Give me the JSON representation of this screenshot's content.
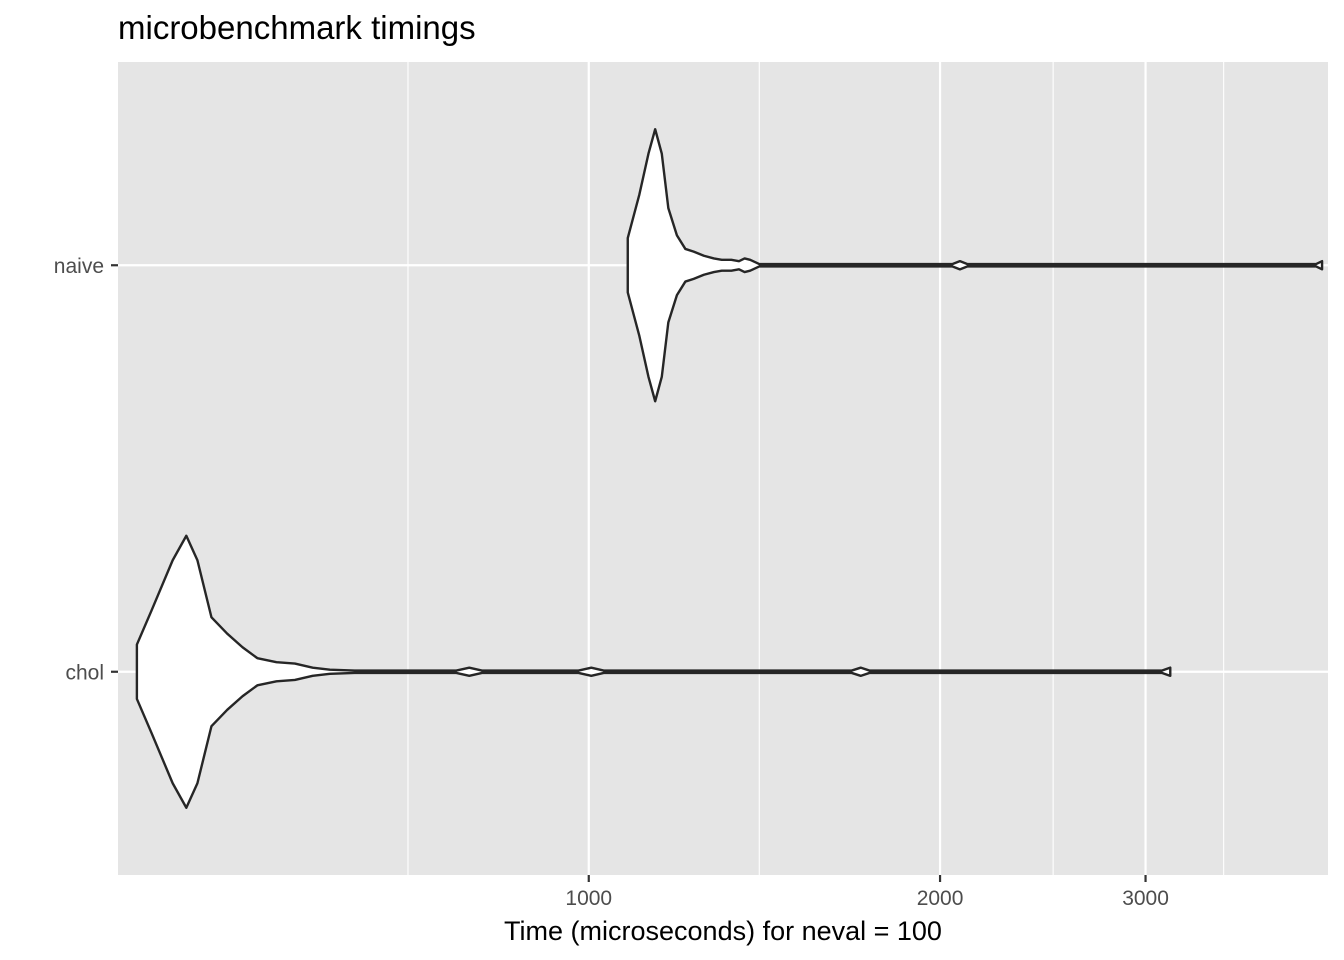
{
  "chart_data": {
    "type": "violin",
    "title": "microbenchmark timings",
    "xlabel": "Time (microseconds) for neval = 100",
    "ylabel": "",
    "x_scale": "log10",
    "xlim": [
      395,
      4300
    ],
    "x_major_ticks": [
      1000,
      2000,
      3000
    ],
    "x_major_tick_labels": [
      "1000",
      "2000",
      "3000"
    ],
    "x_minor_ticks": [
      700,
      1400,
      2500,
      3500
    ],
    "categories": [
      "chol",
      "naive"
    ],
    "grid": true,
    "legend": "none",
    "colors": {
      "panel": "#e5e5e5",
      "grid": "#ffffff",
      "fill": "#ffffff",
      "outline": "#262626",
      "tick_label": "#4d4d4d"
    },
    "series": [
      {
        "category": "chol",
        "min": 410,
        "max": 3150,
        "density": [
          [
            410,
            0.2
          ],
          [
            422,
            0.45
          ],
          [
            440,
            0.82
          ],
          [
            452,
            1.0
          ],
          [
            462,
            0.82
          ],
          [
            475,
            0.4
          ],
          [
            490,
            0.28
          ],
          [
            505,
            0.18
          ],
          [
            520,
            0.1
          ],
          [
            540,
            0.07
          ],
          [
            560,
            0.06
          ],
          [
            580,
            0.03
          ],
          [
            600,
            0.015
          ],
          [
            630,
            0.005
          ],
          [
            660,
            0.005
          ],
          [
            700,
            0.0
          ],
          [
            770,
            0.0
          ],
          [
            790,
            0.03
          ],
          [
            810,
            0.0
          ],
          [
            980,
            0.0
          ],
          [
            1005,
            0.03
          ],
          [
            1030,
            0.0
          ],
          [
            1680,
            0.0
          ],
          [
            1710,
            0.03
          ],
          [
            1740,
            0.0
          ],
          [
            3100,
            0.0
          ],
          [
            3150,
            0.03
          ]
        ]
      },
      {
        "category": "naive",
        "min": 1080,
        "max": 4250,
        "density": [
          [
            1080,
            0.2
          ],
          [
            1105,
            0.52
          ],
          [
            1125,
            0.82
          ],
          [
            1140,
            1.0
          ],
          [
            1155,
            0.82
          ],
          [
            1170,
            0.42
          ],
          [
            1190,
            0.22
          ],
          [
            1210,
            0.12
          ],
          [
            1230,
            0.1
          ],
          [
            1255,
            0.07
          ],
          [
            1280,
            0.05
          ],
          [
            1300,
            0.04
          ],
          [
            1325,
            0.04
          ],
          [
            1345,
            0.03
          ],
          [
            1360,
            0.05
          ],
          [
            1375,
            0.04
          ],
          [
            1400,
            0.0
          ],
          [
            2050,
            0.0
          ],
          [
            2080,
            0.03
          ],
          [
            2110,
            0.0
          ],
          [
            4200,
            0.0
          ],
          [
            4250,
            0.03
          ]
        ]
      }
    ]
  }
}
